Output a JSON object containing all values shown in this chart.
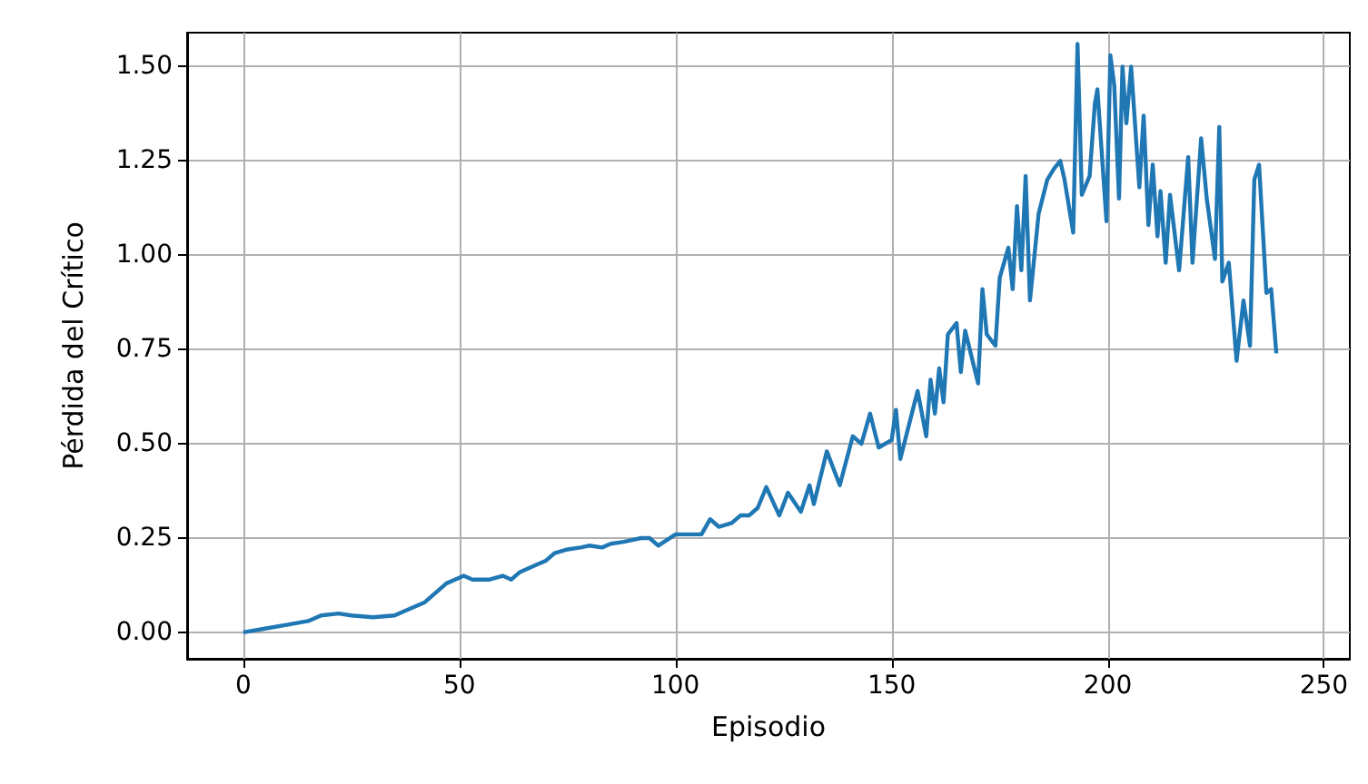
{
  "chart_data": {
    "type": "line",
    "xlabel": "Episodio",
    "ylabel": "Pérdida del Crítico",
    "x": [
      0,
      5,
      10,
      15,
      18,
      22,
      25,
      30,
      35,
      38,
      42,
      45,
      47,
      49,
      51,
      53,
      57,
      60,
      62,
      64,
      66,
      68,
      70,
      72,
      75,
      78,
      80,
      83,
      85,
      88,
      90,
      92,
      94,
      96,
      98,
      100,
      103,
      106,
      108,
      110,
      113,
      115,
      117,
      119,
      121,
      124,
      126,
      129,
      131,
      132,
      135,
      138,
      141,
      143,
      145,
      147,
      150,
      151,
      152,
      156,
      158,
      159,
      160,
      161,
      162,
      163,
      165,
      166,
      167,
      170,
      171,
      172,
      174,
      175,
      177,
      178,
      179,
      180,
      181,
      182,
      184,
      186,
      187.6,
      189,
      190,
      192,
      193,
      194,
      195.8,
      197,
      197.6,
      199.7,
      200.6,
      201.5,
      202.6,
      203.4,
      204.3,
      205.4,
      207.3,
      208.3,
      209.4,
      210.4,
      211.5,
      212.2,
      213.4,
      214.4,
      216.5,
      218.6,
      219.6,
      221.6,
      222.9,
      224.8,
      225.8,
      226.5,
      228,
      229.8,
      231.4,
      232.9,
      233.9,
      235,
      236.7,
      237.8,
      239
    ],
    "series": [
      {
        "color": "#1f77b4",
        "values": [
          0.0,
          0.01,
          0.02,
          0.03,
          0.045,
          0.05,
          0.045,
          0.04,
          0.045,
          0.06,
          0.08,
          0.11,
          0.13,
          0.14,
          0.15,
          0.14,
          0.14,
          0.15,
          0.14,
          0.16,
          0.17,
          0.18,
          0.19,
          0.21,
          0.22,
          0.225,
          0.23,
          0.225,
          0.235,
          0.24,
          0.245,
          0.25,
          0.25,
          0.23,
          0.245,
          0.26,
          0.26,
          0.26,
          0.3,
          0.28,
          0.29,
          0.31,
          0.31,
          0.33,
          0.385,
          0.31,
          0.37,
          0.32,
          0.39,
          0.34,
          0.48,
          0.39,
          0.52,
          0.5,
          0.58,
          0.49,
          0.51,
          0.59,
          0.46,
          0.64,
          0.52,
          0.67,
          0.58,
          0.7,
          0.61,
          0.79,
          0.82,
          0.69,
          0.8,
          0.66,
          0.91,
          0.79,
          0.76,
          0.94,
          1.02,
          0.91,
          1.13,
          0.96,
          1.21,
          0.88,
          1.11,
          1.2,
          1.23,
          1.25,
          1.2,
          1.06,
          1.56,
          1.16,
          1.21,
          1.4,
          1.44,
          1.09,
          1.53,
          1.45,
          1.15,
          1.5,
          1.35,
          1.5,
          1.18,
          1.37,
          1.08,
          1.24,
          1.05,
          1.17,
          0.98,
          1.16,
          0.96,
          1.26,
          0.98,
          1.31,
          1.15,
          0.99,
          1.34,
          0.93,
          0.98,
          0.72,
          0.88,
          0.76,
          1.2,
          1.24,
          0.9,
          0.91,
          0.74
        ]
      }
    ],
    "xlim": [
      -13,
      256
    ],
    "xticks": [
      0,
      50,
      100,
      150,
      200,
      250
    ],
    "ylim": [
      -0.07,
      1.59
    ],
    "yticks": [
      {
        "value": 0,
        "label": "0.00"
      },
      {
        "value": 0.25,
        "label": "0.25"
      },
      {
        "value": 0.5,
        "label": "0.50"
      },
      {
        "value": 0.75,
        "label": "0.75"
      },
      {
        "value": 1,
        "label": "1.00"
      },
      {
        "value": 1.25,
        "label": "1.25"
      },
      {
        "value": 1.5,
        "label": "1.50"
      }
    ],
    "grid": true,
    "marker": "none",
    "line_style": "solid"
  }
}
